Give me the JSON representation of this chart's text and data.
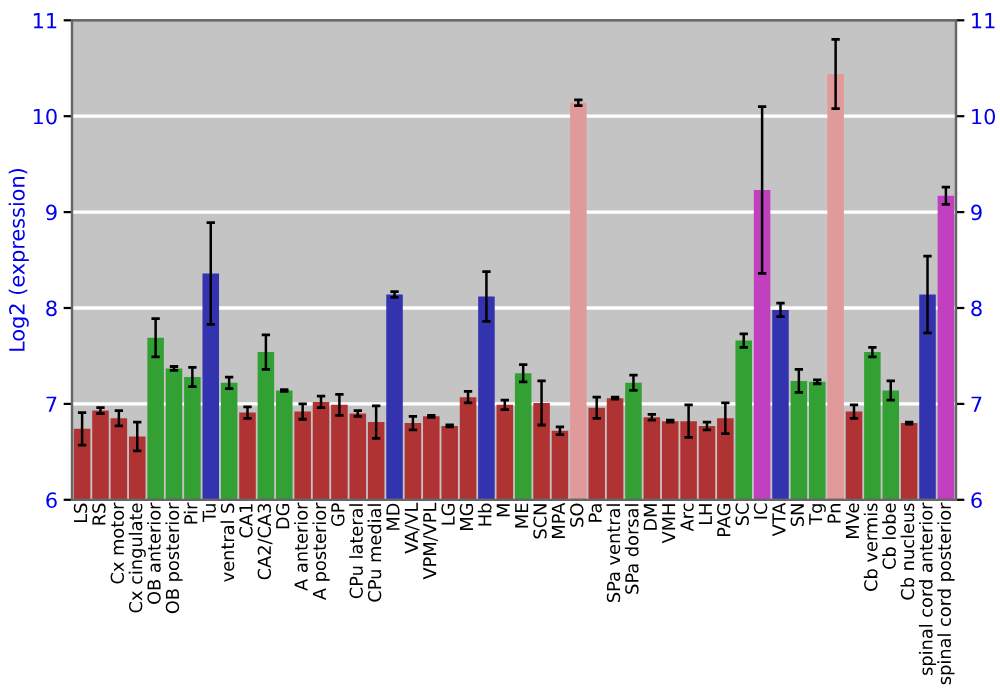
{
  "chart_data": {
    "type": "bar",
    "ylabel": "Log2 (expression)",
    "categories": [
      "LS",
      "RS",
      "Cx motor",
      "Cx cingulate",
      "OB anterior",
      "OB posterior",
      "Pir",
      "Tu",
      "ventral S",
      "CA1",
      "CA2/CA3",
      "DG",
      "A anterior",
      "A posterior",
      "GP",
      "CPu lateral",
      "CPu medial",
      "MD",
      "VA/VL",
      "VPM/VPL",
      "LG",
      "MG",
      "Hb",
      "M",
      "ME",
      "SCN",
      "MPA",
      "SO",
      "Pa",
      "SPa ventral",
      "SPa dorsal",
      "DM",
      "VMH",
      "Arc",
      "LH",
      "PAG",
      "SC",
      "IC",
      "VTA",
      "SN",
      "Tg",
      "Pn",
      "MVe",
      "Cb vermis",
      "Cb lobe",
      "Cb nucleus",
      "spinal cord anterior",
      "spinal cord posterior"
    ],
    "values": [
      6.74,
      6.93,
      6.85,
      6.66,
      7.69,
      7.37,
      7.28,
      8.36,
      7.22,
      6.91,
      7.54,
      7.14,
      6.92,
      7.02,
      6.99,
      6.9,
      6.81,
      8.14,
      6.8,
      6.87,
      6.77,
      7.07,
      8.12,
      6.99,
      7.32,
      7.01,
      6.72,
      10.14,
      6.96,
      7.06,
      7.22,
      6.86,
      6.82,
      6.82,
      6.77,
      6.85,
      7.66,
      9.23,
      7.98,
      7.24,
      7.23,
      10.44,
      6.92,
      7.54,
      7.14,
      6.8,
      8.14,
      9.17
    ],
    "errors": [
      0.17,
      0.03,
      0.08,
      0.15,
      0.2,
      0.02,
      0.1,
      0.53,
      0.06,
      0.06,
      0.18,
      0.01,
      0.08,
      0.06,
      0.11,
      0.03,
      0.17,
      0.03,
      0.07,
      0.01,
      0.01,
      0.06,
      0.26,
      0.05,
      0.09,
      0.23,
      0.04,
      0.03,
      0.11,
      0.01,
      0.08,
      0.03,
      0.01,
      0.17,
      0.04,
      0.16,
      0.07,
      0.87,
      0.07,
      0.12,
      0.02,
      0.36,
      0.07,
      0.05,
      0.1,
      0.01,
      0.4,
      0.09
    ],
    "colors": [
      "#b03333",
      "#b03333",
      "#b03333",
      "#b03333",
      "#33a033",
      "#33a033",
      "#33a033",
      "#3333b0",
      "#33a033",
      "#b03333",
      "#33a033",
      "#33a033",
      "#b03333",
      "#b03333",
      "#b03333",
      "#b03333",
      "#b03333",
      "#3333b0",
      "#b03333",
      "#b03333",
      "#b03333",
      "#b03333",
      "#3333b0",
      "#b03333",
      "#33a033",
      "#b03333",
      "#b03333",
      "#e09a9a",
      "#b03333",
      "#b03333",
      "#33a033",
      "#b03333",
      "#b03333",
      "#b03333",
      "#b03333",
      "#b03333",
      "#33a033",
      "#c040c0",
      "#3333b0",
      "#33a033",
      "#33a033",
      "#e09a9a",
      "#b03333",
      "#33a033",
      "#33a033",
      "#b03333",
      "#3333b0",
      "#c040c0"
    ],
    "ylim": [
      6,
      11
    ],
    "yticks": [
      6,
      7,
      8,
      9,
      10,
      11
    ],
    "y2lim": [
      6,
      11
    ],
    "y2ticks": [
      6,
      7,
      8,
      9,
      10,
      11
    ],
    "grid": "y"
  }
}
